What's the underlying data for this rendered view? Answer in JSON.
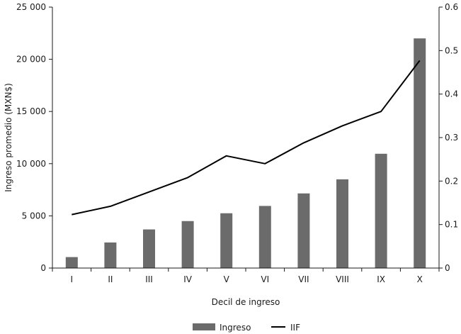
{
  "chart_data": {
    "type": "bar",
    "categories": [
      "I",
      "II",
      "III",
      "IV",
      "V",
      "VI",
      "VII",
      "VIII",
      "IX",
      "X"
    ],
    "series": [
      {
        "name": "Ingreso",
        "type": "bar",
        "axis": "left",
        "color": "#6b6b6b",
        "values": [
          1050,
          2450,
          3700,
          4500,
          5250,
          5950,
          7150,
          8500,
          10950,
          22000
        ]
      },
      {
        "name": "IIF",
        "type": "line",
        "axis": "right",
        "color": "#000000",
        "values": [
          0.123,
          0.142,
          0.175,
          0.208,
          0.258,
          0.24,
          0.288,
          0.327,
          0.36,
          0.477
        ]
      }
    ],
    "xlabel": "Decil de ingreso",
    "ylabel": "Ingreso promedio (MXN$)",
    "y_left": {
      "ylim": [
        0,
        25000
      ],
      "ticks": [
        0,
        5000,
        10000,
        15000,
        20000,
        25000
      ],
      "tick_labels": [
        "0",
        "5 000",
        "10 000",
        "15 000",
        "20 000",
        "25 000"
      ]
    },
    "y_right": {
      "ylim": [
        0,
        0.6
      ],
      "ticks": [
        0,
        0.1,
        0.2,
        0.3,
        0.4,
        0.5,
        0.6
      ],
      "tick_labels": [
        "0",
        "0.1",
        "0.2",
        "0.3",
        "0.4",
        "0.5",
        "0.6"
      ]
    },
    "grid": false,
    "legend_position": "bottom-center"
  }
}
